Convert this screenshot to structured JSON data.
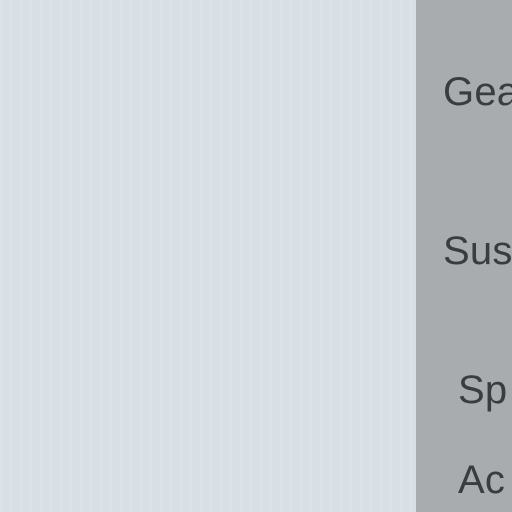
{
  "panel": {
    "items": [
      {
        "label": "Gea"
      },
      {
        "label": "Sus"
      },
      {
        "label": "Sp"
      },
      {
        "label": "Ac"
      }
    ]
  },
  "colors": {
    "main_bg": "#d8dfe5",
    "panel_bg": "#a8acae",
    "text": "#3a3d40"
  }
}
